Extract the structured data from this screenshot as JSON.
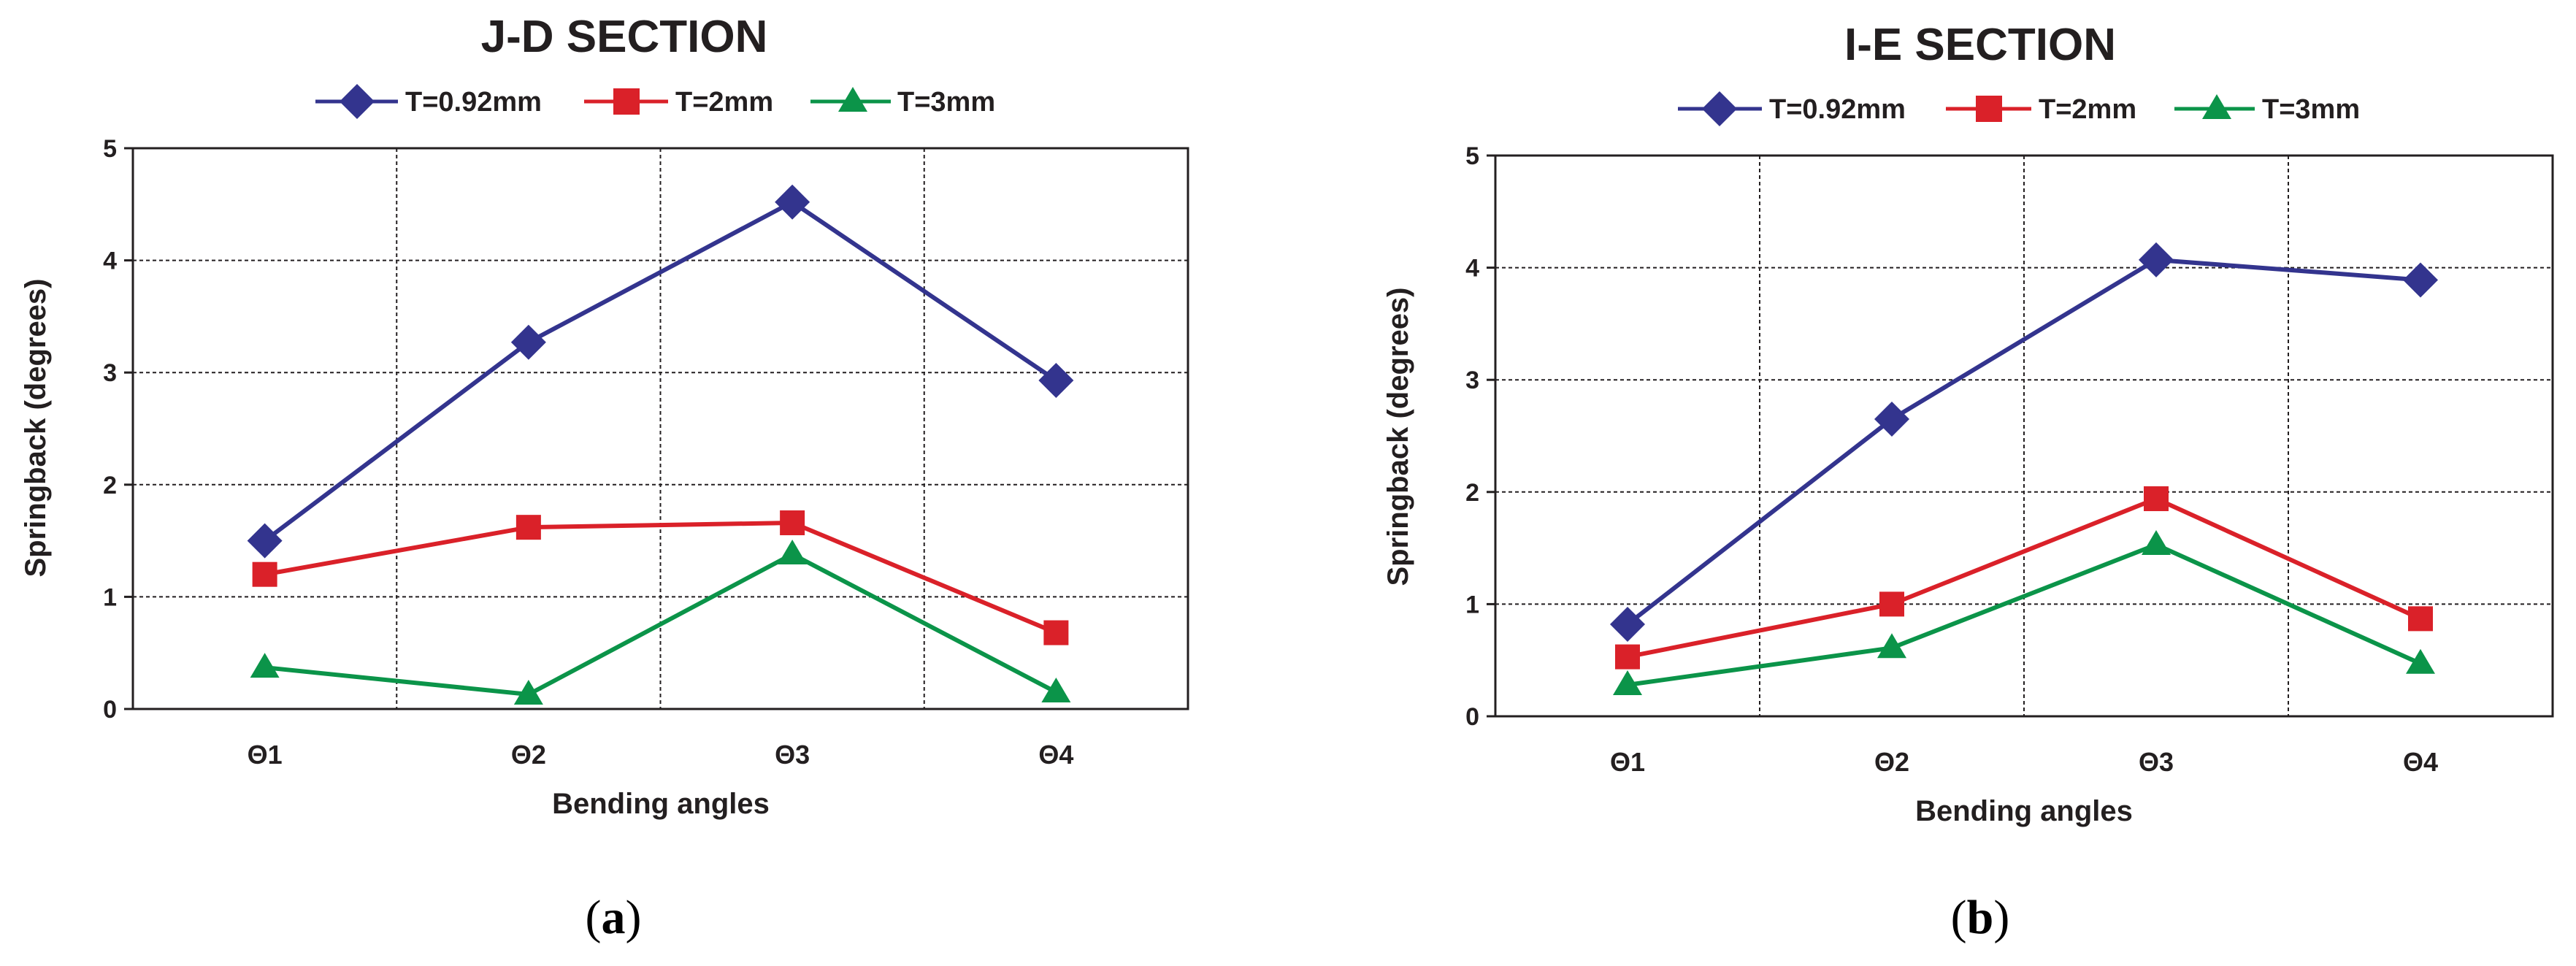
{
  "colors": {
    "series_0": "#33348e",
    "series_1": "#da2129",
    "series_2": "#0b9449",
    "axis": "#231f20",
    "grid": "#231f20"
  },
  "panel_labels": [
    {
      "open": "(",
      "letter": "a",
      "close": ")"
    },
    {
      "open": "(",
      "letter": "b",
      "close": ")"
    }
  ],
  "chart_data": [
    {
      "type": "line",
      "title": "J-D SECTION",
      "xlabel": "Bending angles",
      "ylabel": "Springback (degrees)",
      "categories": [
        "Θ1",
        "Θ2",
        "Θ3",
        "Θ4"
      ],
      "ylim": [
        0,
        5
      ],
      "yticks": [
        "0",
        "1",
        "2",
        "3",
        "4",
        "5"
      ],
      "grid": true,
      "legend_position": "top",
      "series": [
        {
          "name": "T=0.92mm",
          "marker": "diamond",
          "values": [
            1.5,
            3.27,
            4.52,
            2.93
          ]
        },
        {
          "name": "T=2mm",
          "marker": "square",
          "values": [
            1.2,
            1.62,
            1.66,
            0.68
          ]
        },
        {
          "name": "T=3mm",
          "marker": "triangle",
          "values": [
            0.37,
            0.13,
            1.38,
            0.15
          ]
        }
      ]
    },
    {
      "type": "line",
      "title": "I-E SECTION",
      "xlabel": "Bending angles",
      "ylabel": "Springback (degrees)",
      "categories": [
        "Θ1",
        "Θ2",
        "Θ3",
        "Θ4"
      ],
      "ylim": [
        0,
        5
      ],
      "yticks": [
        "0",
        "1",
        "2",
        "3",
        "4",
        "5"
      ],
      "grid": true,
      "legend_position": "top",
      "series": [
        {
          "name": "T=0.92mm",
          "marker": "diamond",
          "values": [
            0.82,
            2.65,
            4.07,
            3.89
          ]
        },
        {
          "name": "T=2mm",
          "marker": "square",
          "values": [
            0.53,
            1.0,
            1.94,
            0.87
          ]
        },
        {
          "name": "T=3mm",
          "marker": "triangle",
          "values": [
            0.28,
            0.61,
            1.53,
            0.47
          ]
        }
      ]
    }
  ]
}
